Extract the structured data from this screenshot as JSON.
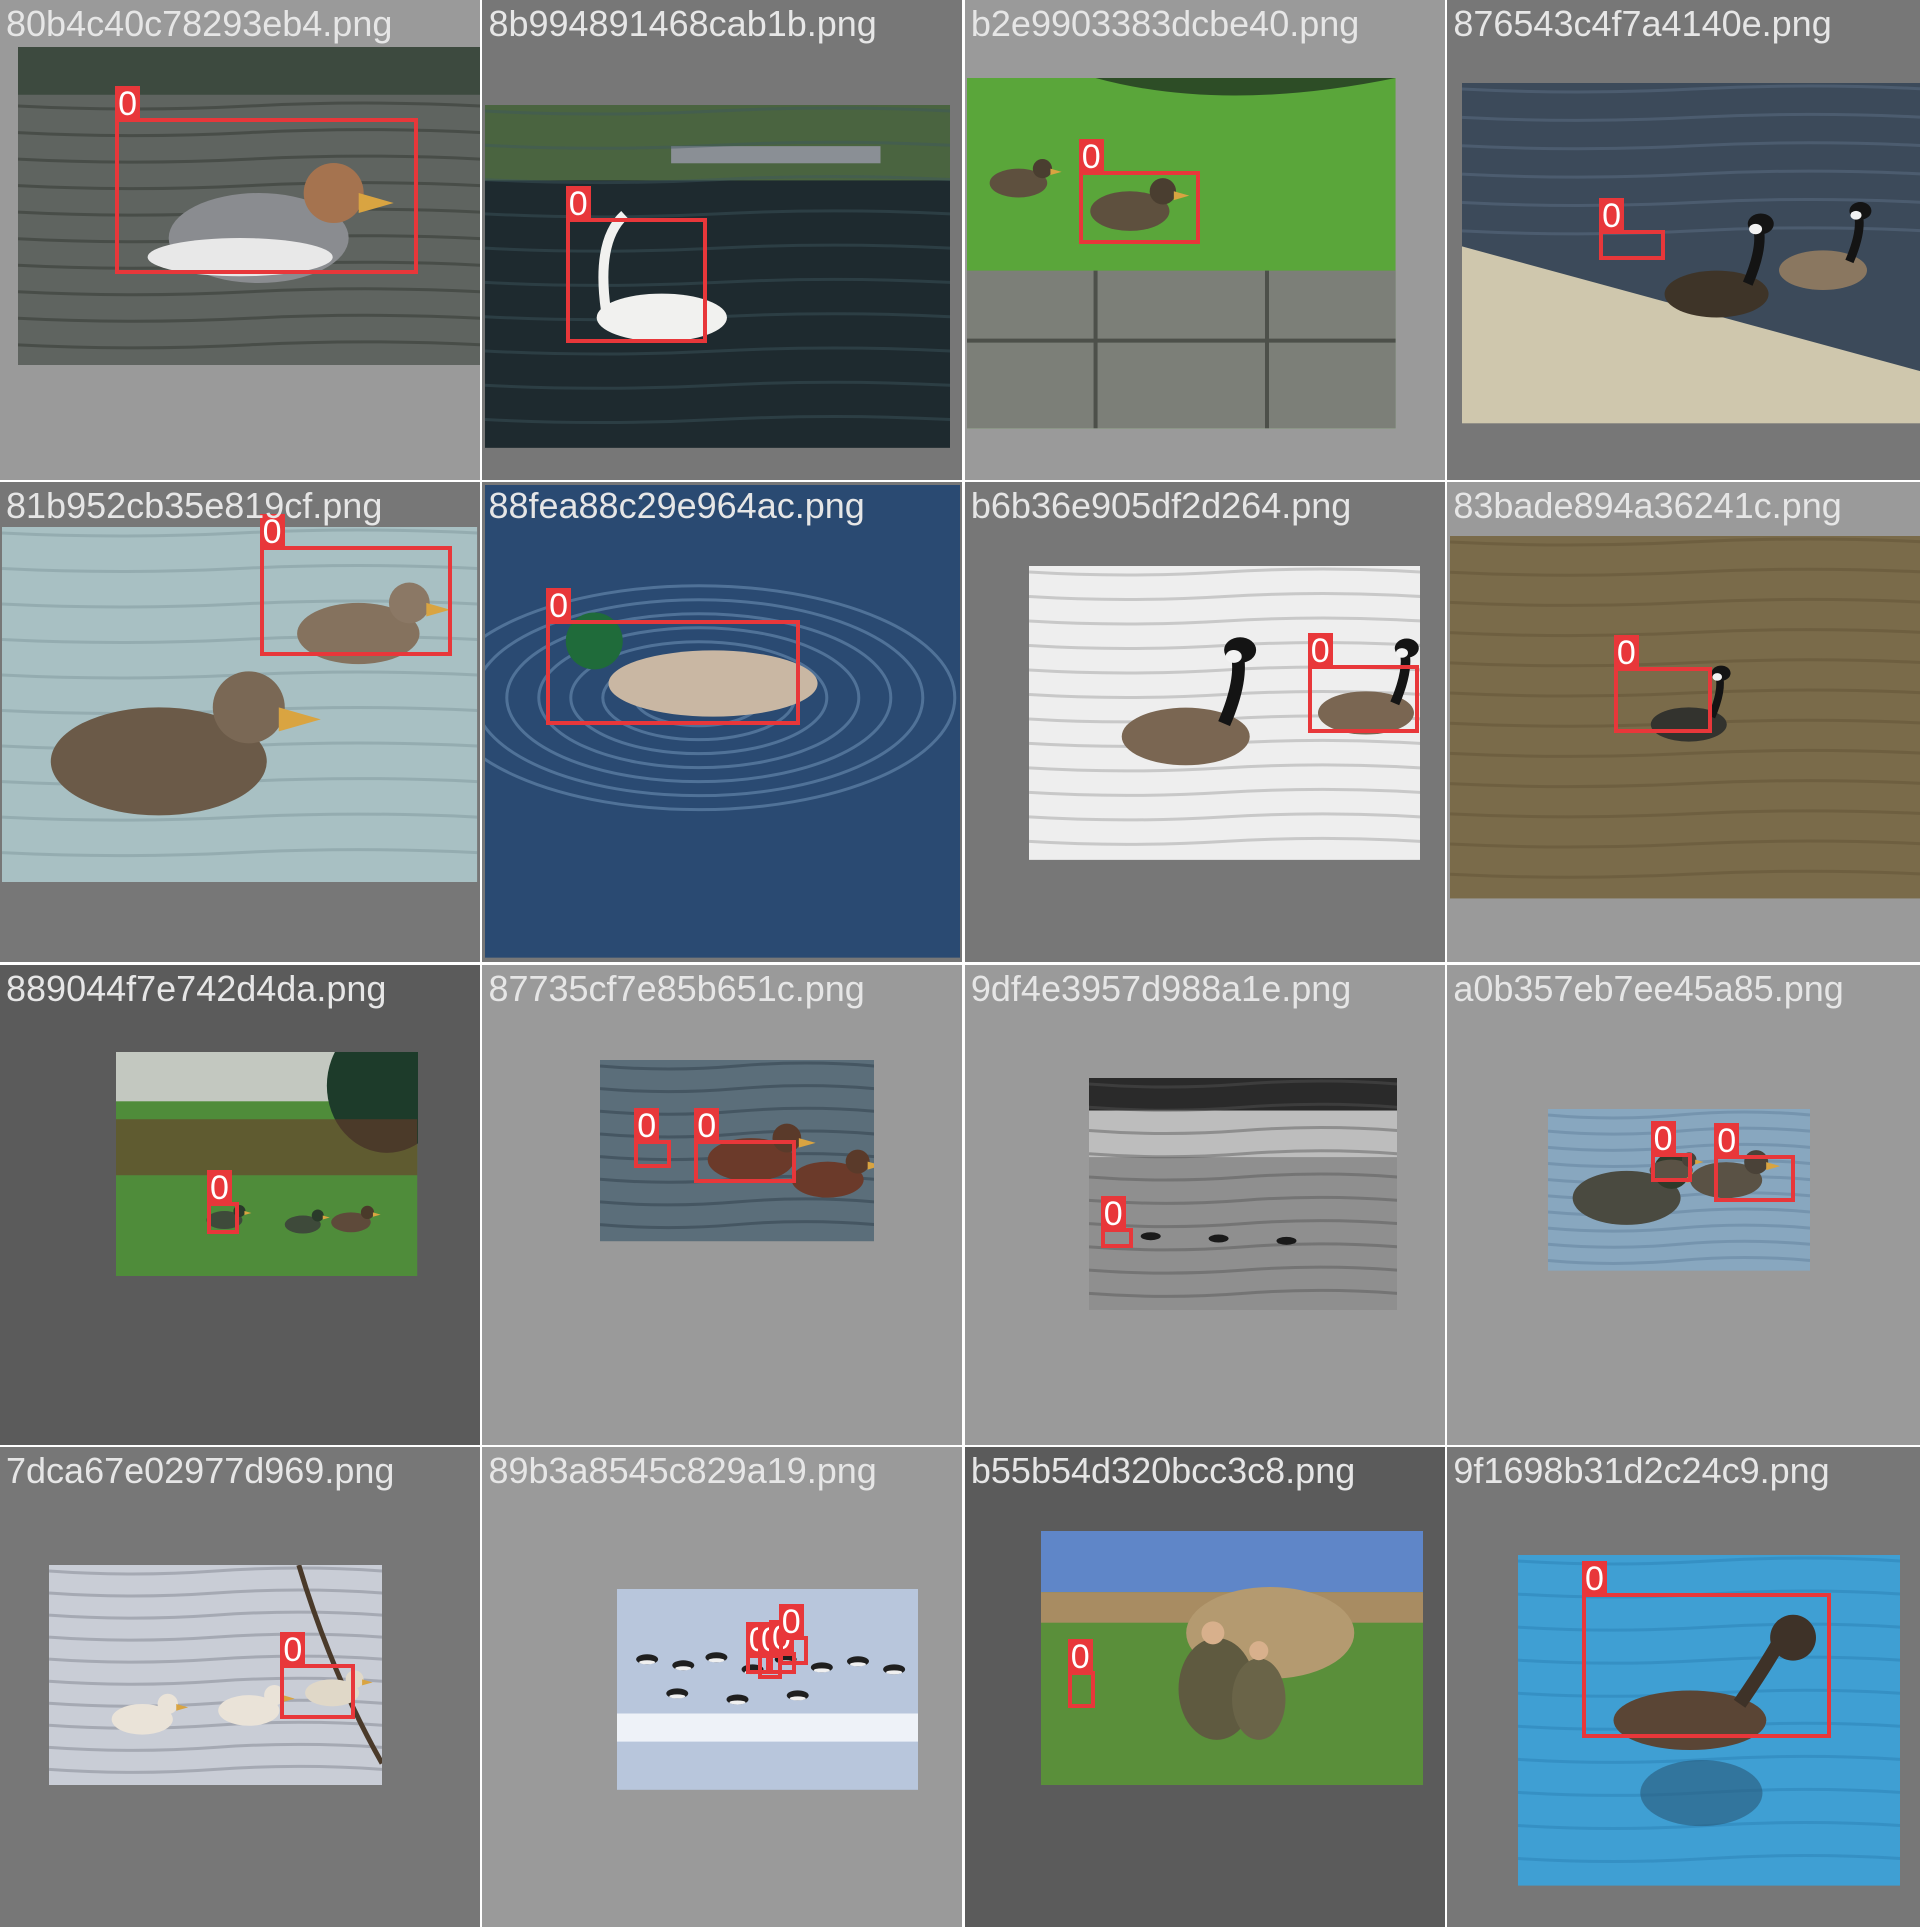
{
  "colors": {
    "box": "#e8373a",
    "label_text": "#ffffff",
    "filename_text": "#e6e6e6",
    "cell_bg_light": "#9a9a9a",
    "cell_bg_mid": "#777777",
    "cell_bg_dark": "#5b5b5b"
  },
  "cells": [
    {
      "filename": "80b4c40c78293eb4.png",
      "labels": [
        "0"
      ],
      "scene": "merganser-duck-swimming",
      "bg": "#9a9a9a"
    },
    {
      "filename": "8b994891468cab1b.png",
      "labels": [
        "0"
      ],
      "scene": "swan-on-pond-with-bridge",
      "bg": "#777777"
    },
    {
      "filename": "b2e9903383dcbe40.png",
      "labels": [
        "0"
      ],
      "scene": "ducks-on-grass-by-stone-wall",
      "bg": "#9a9a9a"
    },
    {
      "filename": "876543c4f7a4140e.png",
      "labels": [
        "0"
      ],
      "scene": "canada-geese-on-shore",
      "bg": "#777777"
    },
    {
      "filename": "81b952cb35e819cf.png",
      "labels": [
        "0"
      ],
      "scene": "eider-ducks-on-water",
      "bg": "#777777"
    },
    {
      "filename": "88fea88c29e964ac.png",
      "labels": [
        "0"
      ],
      "scene": "mallard-with-ripples",
      "bg": "#777777"
    },
    {
      "filename": "b6b36e905df2d264.png",
      "labels": [
        "0"
      ],
      "scene": "canada-geese-swimming",
      "bg": "#777777"
    },
    {
      "filename": "83bade894a36241c.png",
      "labels": [
        "0"
      ],
      "scene": "goose-on-brown-water",
      "bg": "#9a9a9a"
    },
    {
      "filename": "889044f7e742d4da.png",
      "labels": [
        "0"
      ],
      "scene": "ducks-on-lawn-with-leaves",
      "bg": "#5b5b5b"
    },
    {
      "filename": "87735cf7e85b651c.png",
      "labels": [
        "0",
        "0"
      ],
      "scene": "ducks-feeding-in-water",
      "bg": "#9a9a9a"
    },
    {
      "filename": "9df4e3957d988a1e.png",
      "labels": [
        "0"
      ],
      "scene": "geese-on-grey-lake",
      "bg": "#9a9a9a"
    },
    {
      "filename": "a0b357eb7ee45a85.png",
      "labels": [
        "0",
        "0"
      ],
      "scene": "duck-with-ducklings",
      "bg": "#9a9a9a"
    },
    {
      "filename": "7dca67e02977d969.png",
      "labels": [
        "0"
      ],
      "scene": "white-ducks-by-branches",
      "bg": "#777777"
    },
    {
      "filename": "89b3a8545c829a19.png",
      "labels": [
        "0",
        "0",
        "0",
        "0"
      ],
      "scene": "brant-geese-flock",
      "bg": "#9a9a9a"
    },
    {
      "filename": "b55b54d320bcc3c8.png",
      "labels": [
        "0"
      ],
      "scene": "hunters-in-field",
      "bg": "#5b5b5b"
    },
    {
      "filename": "9f1698b31d2c24c9.png",
      "labels": [
        "0"
      ],
      "scene": "grebe-on-blue-water",
      "bg": "#777777"
    }
  ]
}
